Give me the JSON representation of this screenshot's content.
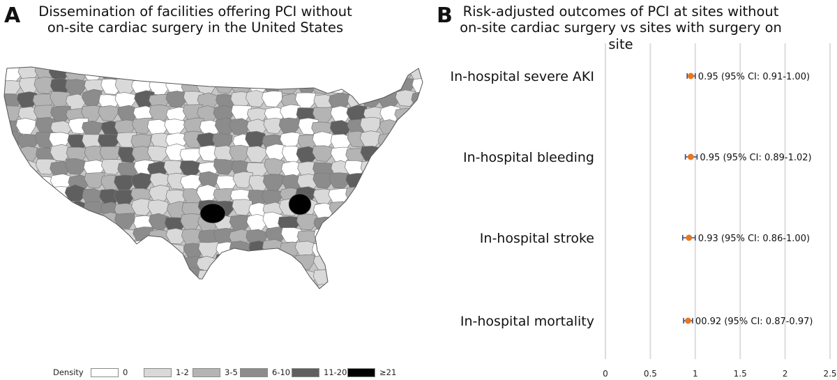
{
  "panel_a": {
    "letter": "A",
    "title_line1": "Dissemination of facilities offering PCI without",
    "title_line2": "on-site cardiac surgery in the United States",
    "legend": {
      "title": "Density",
      "items": [
        {
          "label": "0",
          "color": "#ffffff"
        },
        {
          "label": "1-2",
          "color": "#d9d9d9"
        },
        {
          "label": "3-5",
          "color": "#b4b4b4"
        },
        {
          "label": "6-10",
          "color": "#8c8c8c"
        },
        {
          "label": "11-20",
          "color": "#5f5f5f"
        },
        {
          "label": "≥21",
          "color": "#000000"
        }
      ]
    }
  },
  "panel_b": {
    "letter": "B",
    "title_line1": "Risk-adjusted outcomes of PCI at sites without",
    "title_line2": "on-site cardiac surgery vs sites with surgery on site"
  },
  "chart_data": {
    "type": "scatter",
    "subtype": "forest-plot",
    "xlim": [
      0,
      2.5
    ],
    "x_ticks": [
      "0",
      "0.5",
      "1",
      "1.5",
      "2",
      "2.5"
    ],
    "x_tick_values": [
      0,
      0.5,
      1,
      1.5,
      2,
      2.5
    ],
    "grid": true,
    "point_color": "#e87722",
    "ci_color": "#3a4a7a",
    "rows": [
      {
        "label": "In-hospital severe AKI",
        "estimate": 0.95,
        "ci_low": 0.91,
        "ci_high": 1.0,
        "annotation": "0.95 (95% CI: 0.91-1.00)"
      },
      {
        "label": "In-hospital bleeding",
        "estimate": 0.95,
        "ci_low": 0.89,
        "ci_high": 1.02,
        "annotation": "0.95 (95% CI: 0.89-1.02)"
      },
      {
        "label": "In-hospital stroke",
        "estimate": 0.93,
        "ci_low": 0.86,
        "ci_high": 1.0,
        "annotation": "0.93 (95% CI: 0.86-1.00)"
      },
      {
        "label": "In-hospital mortality",
        "estimate": 0.92,
        "ci_low": 0.87,
        "ci_high": 0.97,
        "annotation": "00.92 (95% CI: 0.87-0.97)"
      }
    ]
  }
}
